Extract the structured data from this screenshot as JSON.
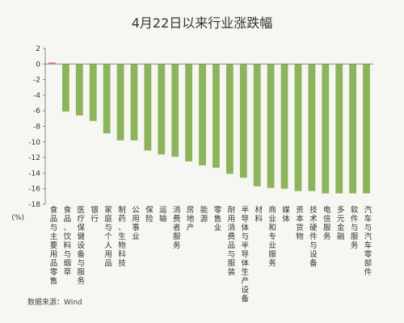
{
  "chart_data": {
    "type": "bar",
    "title": "4月22日以来行业涨跌幅",
    "ylabel": "(%)",
    "ylim": [
      -18,
      2
    ],
    "yticks": [
      2,
      0,
      -2,
      -4,
      -6,
      -8,
      -10,
      -12,
      -14,
      -16,
      -18
    ],
    "grid": false,
    "legend": "none",
    "categories": [
      "食品与主要用品零售",
      "食品、饮料与烟草",
      "医疗保健设备与服务",
      "银行",
      "家庭与个人用品",
      "制药、生物科技",
      "公用事业",
      "保险",
      "运输",
      "消费者服务",
      "房地产",
      "能源",
      "零售业",
      "耐用消费品与服装",
      "半导体与半导体生产设备",
      "材料",
      "商业和专业服务",
      "媒体",
      "资本货物",
      "技术硬件与设备",
      "电信服务",
      "多元金融",
      "软件与服务",
      "汽车与汽车零部件"
    ],
    "series": [
      {
        "values": [
          0.2,
          -6.1,
          -6.6,
          -7.3,
          -8.9,
          -9.8,
          -9.8,
          -11.1,
          -11.6,
          -11.9,
          -12.5,
          -13.0,
          -13.3,
          -14.1,
          -14.6,
          -15.7,
          -15.9,
          -16.0,
          -16.3,
          -16.3,
          -16.6,
          -16.6,
          -16.6,
          -16.6
        ]
      }
    ],
    "colors": {
      "bar": "#8cb55b",
      "first_bar": "#e07a6a",
      "axis": "#888888"
    },
    "source": "数据来源：Wind"
  }
}
